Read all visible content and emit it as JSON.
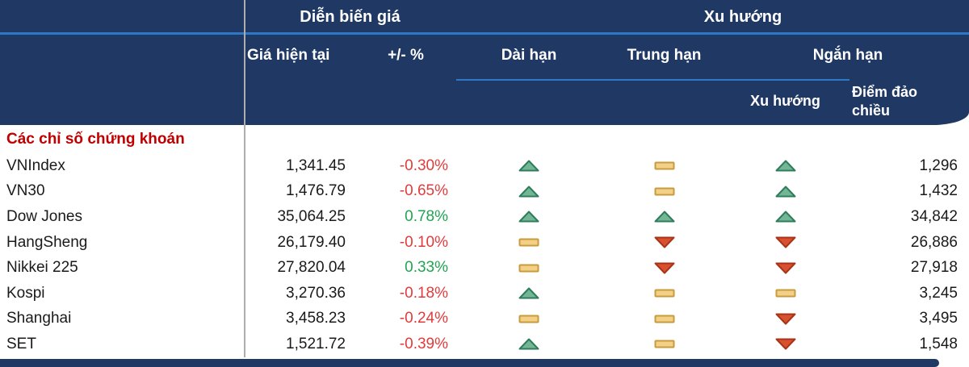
{
  "table": {
    "header": {
      "price_group_label": "Diễn biến giá",
      "trend_group_label": "Xu hướng",
      "columns": {
        "current_price": "Giá hiện tại",
        "change_percent": "+/- %",
        "long_term": "Dài hạn",
        "medium_term": "Trung hạn",
        "short_term": "Ngắn hạn",
        "short_term_trend": "Xu hướng",
        "short_term_reversal": "Điểm đảo chiều"
      }
    },
    "section_title": "Các chỉ số chứng khoán",
    "rows": [
      {
        "name": "VNIndex",
        "price": "1,341.45",
        "change": "-0.30%",
        "long": "up",
        "medium": "flat",
        "short": "up",
        "reversal": "1,296"
      },
      {
        "name": "VN30",
        "price": "1,476.79",
        "change": "-0.65%",
        "long": "up",
        "medium": "flat",
        "short": "up",
        "reversal": "1,432"
      },
      {
        "name": "Dow Jones",
        "price": "35,064.25",
        "change": "0.78%",
        "long": "up",
        "medium": "up",
        "short": "up",
        "reversal": "34,842"
      },
      {
        "name": "HangSheng",
        "price": "26,179.40",
        "change": "-0.10%",
        "long": "flat",
        "medium": "down",
        "short": "down",
        "reversal": "26,886"
      },
      {
        "name": "Nikkei 225",
        "price": "27,820.04",
        "change": "0.33%",
        "long": "flat",
        "medium": "down",
        "short": "down",
        "reversal": "27,918"
      },
      {
        "name": "Kospi",
        "price": "3,270.36",
        "change": "-0.18%",
        "long": "up",
        "medium": "flat",
        "short": "flat",
        "reversal": "3,245"
      },
      {
        "name": "Shanghai",
        "price": "3,458.23",
        "change": "-0.24%",
        "long": "flat",
        "medium": "flat",
        "short": "down",
        "reversal": "3,495"
      },
      {
        "name": "SET",
        "price": "1,521.72",
        "change": "-0.39%",
        "long": "up",
        "medium": "flat",
        "short": "down",
        "reversal": "1,548"
      }
    ]
  },
  "colors": {
    "header_bg": "#1F3864",
    "accent_line": "#2E78C6",
    "divider": "#ADADAD",
    "section_title": "#C00000",
    "negative": "#E23B3B",
    "positive": "#21A453",
    "trend_up_fill": "#72B694",
    "trend_up_stroke": "#2F7C5F",
    "trend_flat_fill": "#F2D187",
    "trend_flat_stroke": "#C99B3F",
    "trend_down_fill": "#D85030",
    "trend_down_stroke": "#A83518"
  }
}
